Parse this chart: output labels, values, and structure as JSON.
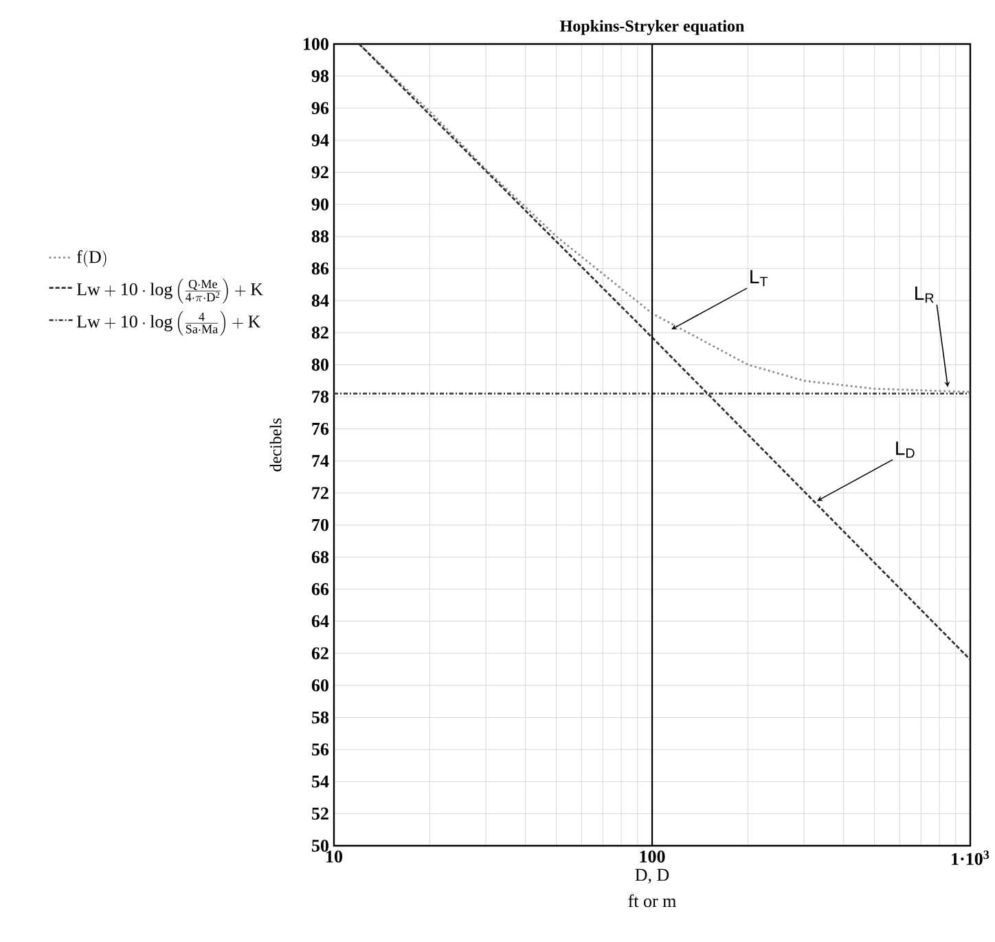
{
  "chart_data": {
    "type": "line",
    "title": "Hopkins-Stryker equation",
    "xlabel": "D, D",
    "ylabel": "decibels",
    "log": "x",
    "xlim": [
      10,
      1000
    ],
    "ylim": [
      50,
      100
    ],
    "xticks": [
      10,
      100,
      {
        "value": 1000,
        "label": "1·10$^{3}$"
      }
    ],
    "yticks": [
      50,
      52,
      54,
      56,
      58,
      60,
      62,
      64,
      66,
      68,
      70,
      72,
      74,
      76,
      78,
      80,
      82,
      84,
      86,
      88,
      90,
      92,
      94,
      96,
      98,
      100
    ],
    "grid": true,
    "legend": "left",
    "series": [
      {
        "name": "\\mathrm{f(D)}",
        "color": "#8a8a8a",
        "line_style": "dotted",
        "x": [
          12,
          20,
          30,
          50,
          100,
          200,
          300,
          500,
          1000
        ],
        "values": [
          100,
          95.8,
          92.2,
          88.0,
          83.2,
          80.0,
          79.0,
          78.5,
          78.3
        ]
      },
      {
        "name": "\\mathrm{Lw+10\\cdot log\\left(\\frac{Q\\cdot Me}{4\\cdot \\pi\\cdot D^{2}}\\right)+K}",
        "color": "#303030",
        "line_style": "dashed",
        "x": [
          12,
          100,
          1000
        ],
        "values": [
          100,
          81.7,
          61.6
        ]
      },
      {
        "name": "\\mathrm{Lw+10\\cdot log\\left(\\frac{4}{Sa\\cdot Ma}\\right)+K}",
        "color": "#404040",
        "line_style": "dashdot",
        "x": [
          10,
          1000
        ],
        "values": [
          78.2,
          78.2
        ]
      }
    ],
    "ref_lines": [
      {
        "axis": "x",
        "value": 100,
        "color": "#000000"
      }
    ],
    "annotations": [
      {
        "text": "L$_{T}$",
        "x": 115,
        "y": 82.2
      },
      {
        "text": "L$_{D}$",
        "x": 330,
        "y": 71.5
      },
      {
        "text": "L$_{R}$",
        "x": 850,
        "y": 78.6
      },
      "ft or m"
    ]
  }
}
